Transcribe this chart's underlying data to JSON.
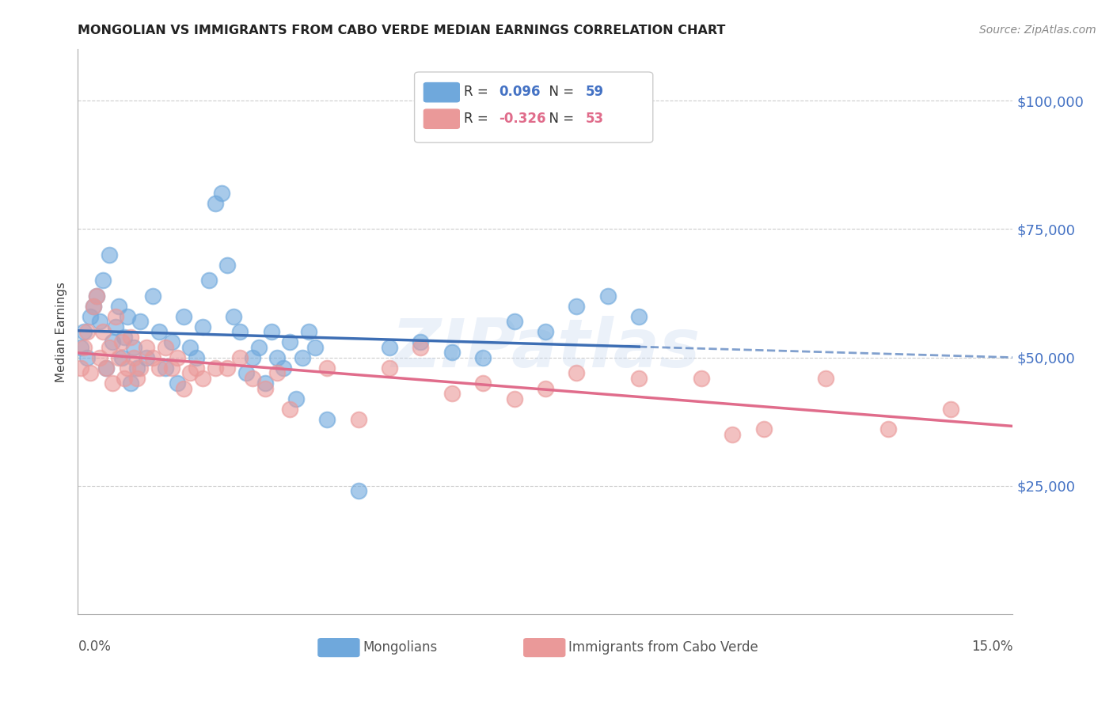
{
  "title": "MONGOLIAN VS IMMIGRANTS FROM CABO VERDE MEDIAN EARNINGS CORRELATION CHART",
  "source": "Source: ZipAtlas.com",
  "ylabel": "Median Earnings",
  "xmin": 0.0,
  "xmax": 15.0,
  "ymin": 0,
  "ymax": 110000,
  "yticks": [
    0,
    25000,
    50000,
    75000,
    100000
  ],
  "ytick_labels": [
    "",
    "$25,000",
    "$50,000",
    "$75,000",
    "$100,000"
  ],
  "legend_r_blue": "0.096",
  "legend_n_blue": "59",
  "legend_r_pink": "-0.326",
  "legend_n_pink": "53",
  "legend_label_blue": "Mongolians",
  "legend_label_pink": "Immigrants from Cabo Verde",
  "blue_color": "#6fa8dc",
  "pink_color": "#ea9999",
  "trend_blue_color": "#3d6eb4",
  "trend_pink_color": "#e06c8b",
  "watermark": "ZIPatlas",
  "blue_scatter_x": [
    0.05,
    0.1,
    0.15,
    0.2,
    0.25,
    0.3,
    0.35,
    0.4,
    0.45,
    0.5,
    0.55,
    0.6,
    0.65,
    0.7,
    0.75,
    0.8,
    0.85,
    0.9,
    0.95,
    1.0,
    1.1,
    1.2,
    1.3,
    1.4,
    1.5,
    1.6,
    1.7,
    1.8,
    1.9,
    2.0,
    2.1,
    2.2,
    2.3,
    2.4,
    2.5,
    2.6,
    2.7,
    2.8,
    2.9,
    3.0,
    3.1,
    3.2,
    3.3,
    3.4,
    3.5,
    3.6,
    3.7,
    3.8,
    4.0,
    4.5,
    5.0,
    5.5,
    6.0,
    6.5,
    7.0,
    7.5,
    8.0,
    8.5,
    9.0
  ],
  "blue_scatter_y": [
    52000,
    55000,
    50000,
    58000,
    60000,
    62000,
    57000,
    65000,
    48000,
    70000,
    53000,
    56000,
    60000,
    50000,
    54000,
    58000,
    45000,
    52000,
    48000,
    57000,
    50000,
    62000,
    55000,
    48000,
    53000,
    45000,
    58000,
    52000,
    50000,
    56000,
    65000,
    80000,
    82000,
    68000,
    58000,
    55000,
    47000,
    50000,
    52000,
    45000,
    55000,
    50000,
    48000,
    53000,
    42000,
    50000,
    55000,
    52000,
    38000,
    24000,
    52000,
    53000,
    51000,
    50000,
    57000,
    55000,
    60000,
    62000,
    58000
  ],
  "pink_scatter_x": [
    0.05,
    0.1,
    0.15,
    0.2,
    0.25,
    0.3,
    0.35,
    0.4,
    0.45,
    0.5,
    0.55,
    0.6,
    0.65,
    0.7,
    0.75,
    0.8,
    0.85,
    0.9,
    0.95,
    1.0,
    1.1,
    1.2,
    1.3,
    1.4,
    1.5,
    1.6,
    1.7,
    1.8,
    1.9,
    2.0,
    2.2,
    2.4,
    2.6,
    2.8,
    3.0,
    3.2,
    3.4,
    4.0,
    4.5,
    5.0,
    5.5,
    6.0,
    6.5,
    7.0,
    7.5,
    8.0,
    9.0,
    10.0,
    10.5,
    11.0,
    12.0,
    13.0,
    14.0
  ],
  "pink_scatter_y": [
    48000,
    52000,
    55000,
    47000,
    60000,
    62000,
    50000,
    55000,
    48000,
    52000,
    45000,
    58000,
    50000,
    53000,
    46000,
    48000,
    54000,
    50000,
    46000,
    48000,
    52000,
    50000,
    48000,
    52000,
    48000,
    50000,
    44000,
    47000,
    48000,
    46000,
    48000,
    48000,
    50000,
    46000,
    44000,
    47000,
    40000,
    48000,
    38000,
    48000,
    52000,
    43000,
    45000,
    42000,
    44000,
    47000,
    46000,
    46000,
    35000,
    36000,
    46000,
    36000,
    40000
  ]
}
